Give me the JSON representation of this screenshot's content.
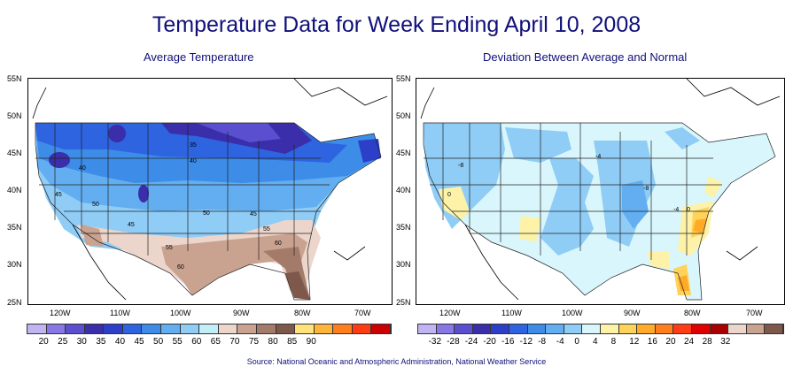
{
  "title": "Temperature Data for Week Ending April 10, 2008",
  "left_panel": {
    "title": "Average Temperature",
    "contour_labels": [
      "35",
      "40",
      "40",
      "45",
      "50",
      "45",
      "50",
      "45",
      "55",
      "55",
      "60",
      "60"
    ],
    "legend_labels": [
      "20",
      "25",
      "30",
      "35",
      "40",
      "45",
      "50",
      "55",
      "60",
      "65",
      "70",
      "75",
      "80",
      "85",
      "90"
    ],
    "legend_colors": [
      "#c2b4f2",
      "#8878e6",
      "#5a50cf",
      "#3a2eaa",
      "#2c3fc8",
      "#2e64e0",
      "#3d8ce8",
      "#62aef0",
      "#8fccf6",
      "#c2eef8",
      "#ecd6cc",
      "#caa290",
      "#a47a6a",
      "#7e584a",
      "#ffe27a",
      "#ffb43c",
      "#ff7f1e",
      "#ff3c14",
      "#cc0000"
    ]
  },
  "right_panel": {
    "title": "Deviation Between Average and Normal",
    "contour_labels": [
      "-8",
      "-4",
      "-8",
      "0",
      "-4",
      "0"
    ],
    "legend_labels": [
      "-32",
      "-28",
      "-24",
      "-20",
      "-16",
      "-12",
      "-8",
      "-4",
      "0",
      "4",
      "8",
      "12",
      "16",
      "20",
      "24",
      "28",
      "32"
    ],
    "legend_colors": [
      "#c2b4f2",
      "#8878e6",
      "#5a50cf",
      "#3a2eaa",
      "#2c3fc8",
      "#2e64e0",
      "#3d8ce8",
      "#62aef0",
      "#8fccf6",
      "#d8f6fb",
      "#fdf2a8",
      "#ffd25a",
      "#ffaa28",
      "#ff7f1e",
      "#ff3c14",
      "#e00000",
      "#aa0000",
      "#ecd6cc",
      "#caa290",
      "#7e584a"
    ]
  },
  "axes": {
    "lat_labels": [
      "55N",
      "50N",
      "45N",
      "40N",
      "35N",
      "30N",
      "25N"
    ],
    "lon_labels": [
      "120W",
      "110W",
      "100W",
      "90W",
      "80W",
      "70W"
    ]
  },
  "source": "Source:  National Oceanic and Atmospheric Administration, National Weather Service"
}
